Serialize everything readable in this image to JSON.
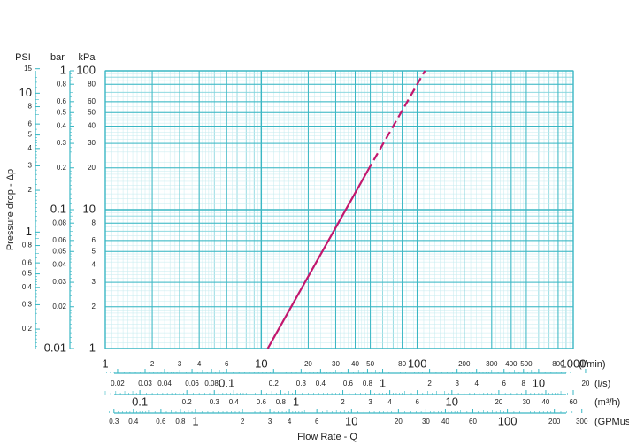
{
  "chart_data": {
    "type": "line",
    "x_label": "Flow Rate - Q",
    "y_label": "Pressure drop - Δp",
    "log_x": true,
    "log_y": true,
    "grid": true,
    "x_unit": "(l/min)",
    "y_unit": "kPa",
    "xlim": [
      1,
      1000
    ],
    "ylim": [
      1,
      100
    ],
    "xticks": [
      1,
      2,
      3,
      4,
      6,
      10,
      20,
      30,
      40,
      50,
      80,
      100,
      200,
      300,
      400,
      500,
      800,
      1000
    ],
    "yticks": [
      1,
      2,
      3,
      4,
      5,
      6,
      8,
      10,
      20,
      30,
      40,
      50,
      60,
      80,
      100
    ],
    "series": [
      {
        "color": "#c2176e",
        "style": "solid",
        "x": [
          11,
          48
        ],
        "values": [
          1,
          19
        ]
      },
      {
        "color": "#c2176e",
        "style": "dashed",
        "x": [
          48,
          112
        ],
        "values": [
          19,
          100
        ]
      }
    ],
    "extra_y_axes": [
      {
        "unit": "bar",
        "lim": [
          0.01,
          1
        ],
        "ticks": [
          0.01,
          0.02,
          0.03,
          0.04,
          0.05,
          0.06,
          0.08,
          0.1,
          0.2,
          0.3,
          0.4,
          0.5,
          0.6,
          0.8,
          1
        ]
      },
      {
        "unit": "PSI",
        "lim": [
          0.145,
          14.5
        ],
        "ticks": [
          0.2,
          0.3,
          0.4,
          0.5,
          0.6,
          0.8,
          1,
          2,
          3,
          4,
          5,
          6,
          8,
          10,
          15
        ]
      }
    ],
    "extra_x_axes": [
      {
        "unit": "(l/s)",
        "lim": [
          0.01667,
          16.67
        ],
        "ticks": [
          0.02,
          0.03,
          0.04,
          0.06,
          0.08,
          0.1,
          0.2,
          0.3,
          0.4,
          0.6,
          0.8,
          1,
          2,
          3,
          4,
          6,
          8,
          10,
          20
        ]
      },
      {
        "unit": "(m³/h)",
        "lim": [
          0.06,
          60
        ],
        "ticks": [
          0.1,
          0.2,
          0.3,
          0.4,
          0.6,
          0.8,
          1,
          2,
          3,
          4,
          6,
          10,
          20,
          30,
          40,
          60
        ]
      },
      {
        "unit": "(GPMus)",
        "lim": [
          0.264,
          264.2
        ],
        "ticks": [
          0.3,
          0.4,
          0.6,
          0.8,
          1,
          2,
          3,
          4,
          6,
          10,
          20,
          30,
          40,
          60,
          100,
          200,
          300
        ]
      }
    ]
  }
}
